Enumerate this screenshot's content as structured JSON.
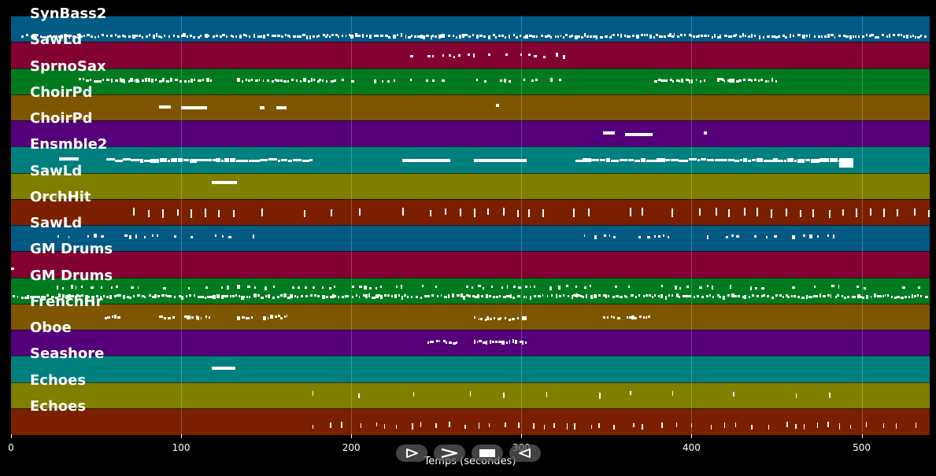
{
  "chart_data": {
    "type": "piano-roll",
    "xlabel": "Temps (secondes)",
    "xlim": [
      0,
      540
    ],
    "xticks": [
      0,
      100,
      200,
      300,
      400,
      500
    ],
    "grid": true,
    "tracks": [
      {
        "name": "SynBass2",
        "color": "#005a84",
        "segments": [
          {
            "start": 6,
            "end": 538,
            "density": "dense",
            "row": 0.75,
            "style": "small"
          }
        ]
      },
      {
        "name": "SawLd",
        "color": "#820032",
        "segments": [
          {
            "start": 232,
            "end": 328,
            "density": "sparse",
            "row": 0.5,
            "style": "tiny"
          }
        ]
      },
      {
        "name": "SprnoSax",
        "color": "#007a1f",
        "segments": [
          {
            "start": 40,
            "end": 118,
            "density": "dense",
            "row": 0.45,
            "style": "small"
          },
          {
            "start": 133,
            "end": 190,
            "density": "dense",
            "row": 0.45,
            "style": "small"
          },
          {
            "start": 190,
            "end": 326,
            "density": "sparse",
            "row": 0.45,
            "style": "small"
          },
          {
            "start": 378,
            "end": 408,
            "density": "dense",
            "row": 0.45,
            "style": "small"
          },
          {
            "start": 415,
            "end": 450,
            "density": "dense",
            "row": 0.45,
            "style": "small"
          }
        ]
      },
      {
        "name": "ChoirPd",
        "color": "#7f5600",
        "segments": [
          {
            "start": 87,
            "end": 94,
            "density": "solid",
            "row": 0.45,
            "style": "bar"
          },
          {
            "start": 100,
            "end": 115,
            "density": "solid",
            "row": 0.5,
            "style": "bar"
          },
          {
            "start": 146,
            "end": 149,
            "density": "solid",
            "row": 0.5,
            "style": "bar"
          },
          {
            "start": 156,
            "end": 162,
            "density": "solid",
            "row": 0.5,
            "style": "bar"
          },
          {
            "start": 285,
            "end": 287,
            "density": "solid",
            "row": 0.4,
            "style": "bar"
          }
        ]
      },
      {
        "name": "ChoirPd",
        "color": "#55007a",
        "segments": [
          {
            "start": 348,
            "end": 355,
            "density": "solid",
            "row": 0.45,
            "style": "bar"
          },
          {
            "start": 361,
            "end": 377,
            "density": "solid",
            "row": 0.5,
            "style": "bar"
          },
          {
            "start": 407,
            "end": 409,
            "density": "solid",
            "row": 0.45,
            "style": "bar"
          }
        ]
      },
      {
        "name": "Ensmble2",
        "color": "#007f7f",
        "segments": [
          {
            "start": 28,
            "end": 40,
            "density": "solid",
            "row": 0.45,
            "style": "bar"
          },
          {
            "start": 56,
            "end": 177,
            "density": "dense",
            "row": 0.5,
            "style": "bar"
          },
          {
            "start": 230,
            "end": 258,
            "density": "solid",
            "row": 0.5,
            "style": "bar"
          },
          {
            "start": 272,
            "end": 303,
            "density": "solid",
            "row": 0.5,
            "style": "bar"
          },
          {
            "start": 332,
            "end": 487,
            "density": "dense",
            "row": 0.5,
            "style": "bar"
          },
          {
            "start": 487,
            "end": 495,
            "density": "solid",
            "row": 0.6,
            "style": "block"
          }
        ]
      },
      {
        "name": "SawLd",
        "color": "#7f7f00",
        "segments": [
          {
            "start": 118,
            "end": 133,
            "density": "solid",
            "row": 0.35,
            "style": "bar"
          }
        ]
      },
      {
        "name": "OrchHit",
        "color": "#7a2000",
        "segments": [
          {
            "start": 72,
            "end": 538,
            "density": "hits",
            "row": 0.5,
            "style": "vtick"
          }
        ]
      },
      {
        "name": "SawLd",
        "color": "#005a84",
        "segments": [
          {
            "start": 20,
            "end": 145,
            "density": "sparse",
            "row": 0.4,
            "style": "small"
          },
          {
            "start": 332,
            "end": 487,
            "density": "sparse",
            "row": 0.4,
            "style": "small"
          }
        ]
      },
      {
        "name": "GM Drums",
        "color": "#820032",
        "segments": [
          {
            "start": 0,
            "end": 1,
            "density": "solid",
            "row": 0.65,
            "style": "tiny"
          }
        ]
      },
      {
        "name": "GM Drums",
        "color": "#007a1f",
        "segments": [
          {
            "start": 1,
            "end": 538,
            "density": "dense",
            "row": 0.7,
            "style": "small"
          },
          {
            "start": 27,
            "end": 538,
            "density": "sparse",
            "row": 0.35,
            "style": "tiny"
          }
        ]
      },
      {
        "name": "FrenchHr",
        "color": "#7f5600",
        "segments": [
          {
            "start": 55,
            "end": 65,
            "density": "dense",
            "row": 0.5,
            "style": "small"
          },
          {
            "start": 87,
            "end": 96,
            "density": "dense",
            "row": 0.5,
            "style": "small"
          },
          {
            "start": 102,
            "end": 117,
            "density": "dense",
            "row": 0.5,
            "style": "small"
          },
          {
            "start": 133,
            "end": 142,
            "density": "dense",
            "row": 0.5,
            "style": "small"
          },
          {
            "start": 148,
            "end": 162,
            "density": "dense",
            "row": 0.5,
            "style": "small"
          },
          {
            "start": 272,
            "end": 303,
            "density": "dense",
            "row": 0.55,
            "style": "small"
          },
          {
            "start": 348,
            "end": 357,
            "density": "dense",
            "row": 0.5,
            "style": "small"
          },
          {
            "start": 362,
            "end": 377,
            "density": "dense",
            "row": 0.5,
            "style": "small"
          }
        ]
      },
      {
        "name": "Oboe",
        "color": "#55007a",
        "segments": [
          {
            "start": 245,
            "end": 262,
            "density": "dense",
            "row": 0.45,
            "style": "small"
          },
          {
            "start": 272,
            "end": 303,
            "density": "dense",
            "row": 0.45,
            "style": "small"
          }
        ]
      },
      {
        "name": "Seashore",
        "color": "#007f7f",
        "segments": [
          {
            "start": 118,
            "end": 132,
            "density": "solid",
            "row": 0.45,
            "style": "bar"
          }
        ]
      },
      {
        "name": "Echoes",
        "color": "#7f7f00",
        "segments": [
          {
            "start": 177,
            "end": 495,
            "density": "hits-sparse",
            "row": 0.45,
            "style": "tinytick"
          }
        ]
      },
      {
        "name": "Echoes",
        "color": "#7a2000",
        "segments": [
          {
            "start": 177,
            "end": 535,
            "density": "hits",
            "row": 0.65,
            "style": "tinytick"
          }
        ]
      }
    ]
  },
  "controls": [
    {
      "name": "play-button",
      "icon": "play-outline-icon"
    },
    {
      "name": "forward-button",
      "icon": "fast-forward-icon"
    },
    {
      "name": "stop-button",
      "icon": "stop-icon"
    },
    {
      "name": "rewind-button",
      "icon": "rewind-icon"
    }
  ]
}
